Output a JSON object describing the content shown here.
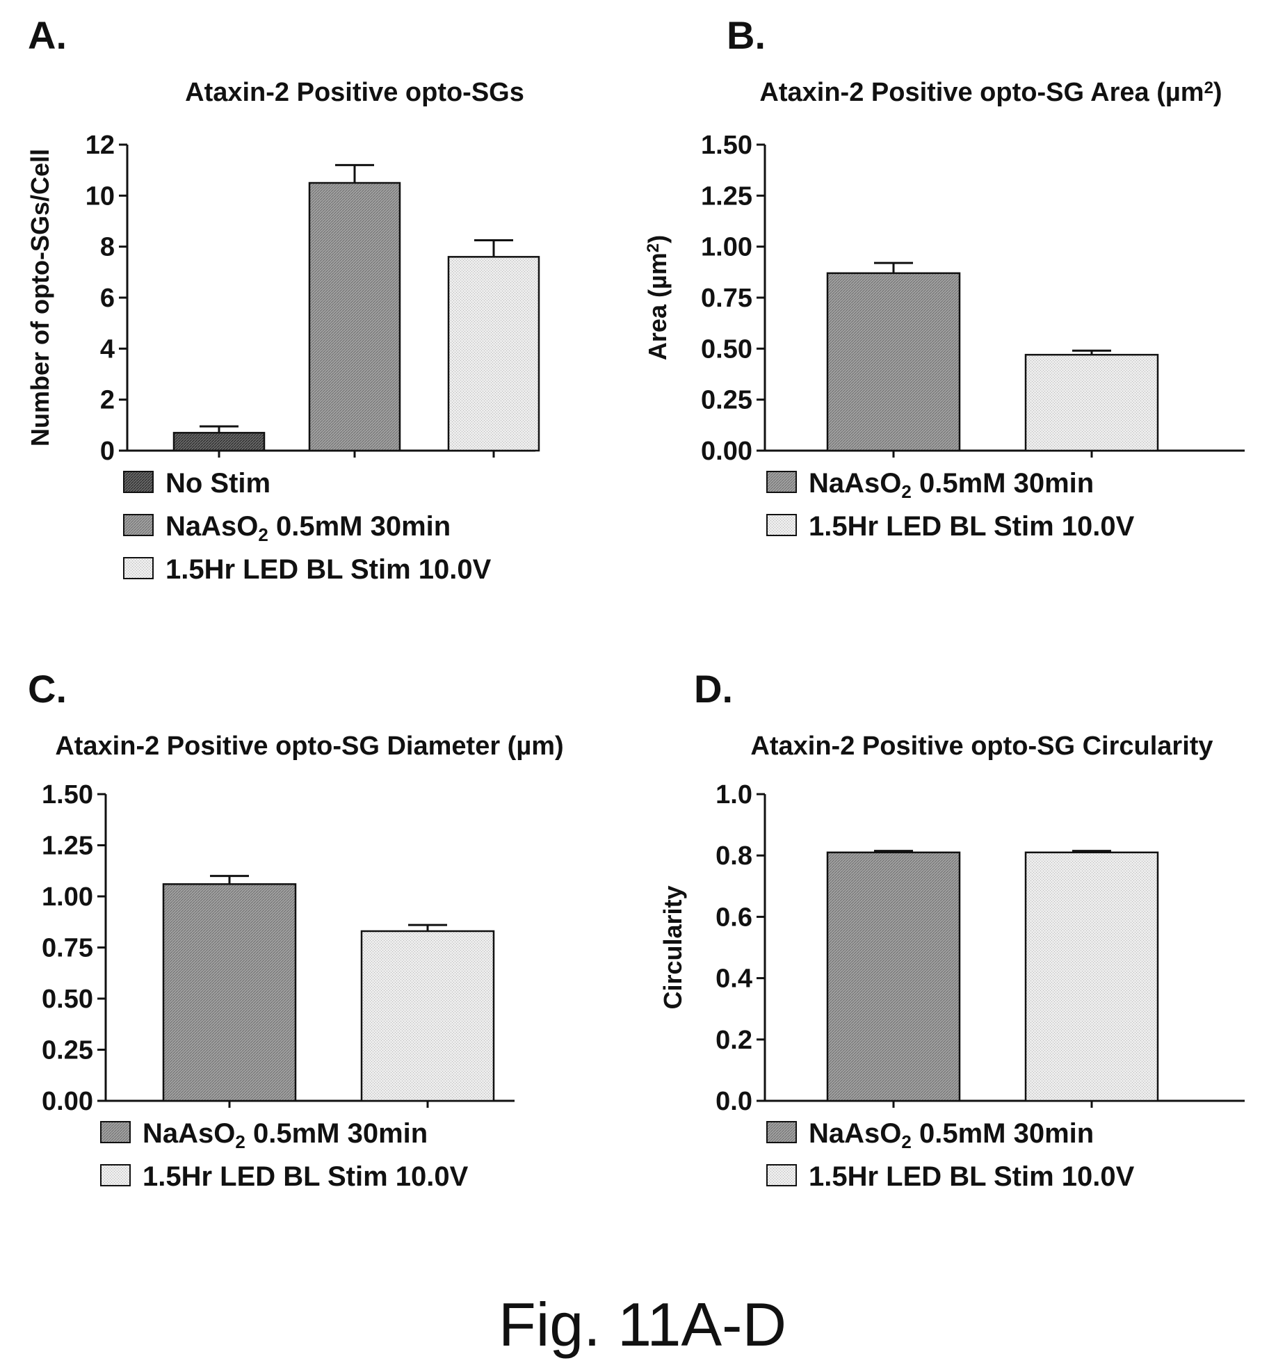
{
  "caption": "Fig. 11A-D",
  "colors": {
    "no_stim": "#555555",
    "naaso2": "#8f8f8f",
    "led": "#e1e1e1",
    "axis": "#111111"
  },
  "chart_data": [
    {
      "panel": "A.",
      "type": "bar",
      "title": "Ataxin-2 Positive opto-SGs",
      "xlabel": "",
      "ylabel": "Number of opto-SGs/Cell",
      "ylim": [
        0,
        12
      ],
      "yticks": [
        "0",
        "2",
        "4",
        "6",
        "8",
        "10",
        "12"
      ],
      "categories": [
        "No Stim",
        "NaAsO2 0.5mM 30min",
        "1.5Hr LED BL Stim 10.0V"
      ],
      "values": [
        0.7,
        10.5,
        7.6
      ],
      "errors": [
        0.25,
        0.7,
        0.65
      ],
      "legend": [
        "No Stim",
        "NaAsO2 0.5mM 30min",
        "1.5Hr LED BL Stim 10.0V"
      ],
      "series_colors": [
        "no_stim",
        "naaso2",
        "led"
      ],
      "legend_position": "below"
    },
    {
      "panel": "B.",
      "type": "bar",
      "title": "Ataxin-2 Positive opto-SG Area (µm2)",
      "xlabel": "",
      "ylabel": "Area (µm2)",
      "ylim": [
        0,
        1.5
      ],
      "yticks": [
        "0.00",
        "0.25",
        "0.50",
        "0.75",
        "1.00",
        "1.25",
        "1.50"
      ],
      "categories": [
        "NaAsO2 0.5mM 30min",
        "1.5Hr LED BL Stim 10.0V"
      ],
      "values": [
        0.87,
        0.47
      ],
      "errors": [
        0.05,
        0.02
      ],
      "legend": [
        "NaAsO2 0.5mM 30min",
        "1.5Hr LED BL Stim 10.0V"
      ],
      "series_colors": [
        "naaso2",
        "led"
      ],
      "legend_position": "below"
    },
    {
      "panel": "C.",
      "type": "bar",
      "title": "Ataxin-2 Positive opto-SG Diameter (µm)",
      "xlabel": "",
      "ylabel": "",
      "ylim": [
        0,
        1.5
      ],
      "yticks": [
        "0.00",
        "0.25",
        "0.50",
        "0.75",
        "1.00",
        "1.25",
        "1.50"
      ],
      "categories": [
        "NaAsO2 0.5mM 30min",
        "1.5Hr LED BL Stim 10.0V"
      ],
      "values": [
        1.06,
        0.83
      ],
      "errors": [
        0.04,
        0.03
      ],
      "legend": [
        "NaAsO2 0.5mM 30min",
        "1.5Hr LED BL Stim 10.0V"
      ],
      "series_colors": [
        "naaso2",
        "led"
      ],
      "legend_position": "below"
    },
    {
      "panel": "D.",
      "type": "bar",
      "title": "Ataxin-2 Positive opto-SG Circularity",
      "xlabel": "",
      "ylabel": "Circularity",
      "ylim": [
        0,
        1.0
      ],
      "yticks": [
        "0.0",
        "0.2",
        "0.4",
        "0.6",
        "0.8",
        "1.0"
      ],
      "categories": [
        "NaAsO2 0.5mM 30min",
        "1.5Hr LED BL Stim 10.0V"
      ],
      "values": [
        0.81,
        0.81
      ],
      "errors": [
        0.005,
        0.005
      ],
      "legend": [
        "NaAsO2 0.5mM 30min",
        "1.5Hr LED BL Stim 10.0V"
      ],
      "series_colors": [
        "naaso2",
        "led"
      ],
      "legend_position": "below"
    }
  ]
}
